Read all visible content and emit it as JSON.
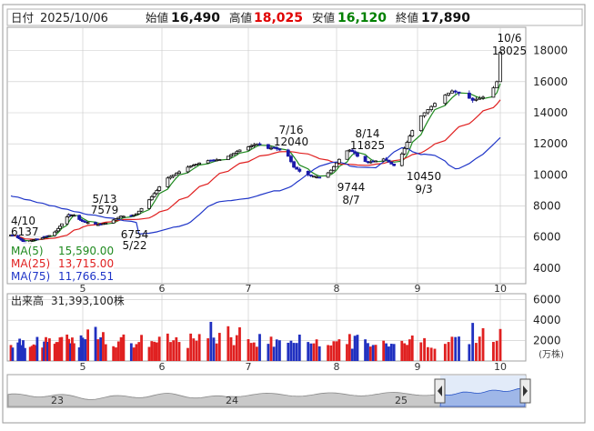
{
  "header": {
    "date_label": "日付",
    "date": "2025/10/06",
    "open_label": "始値",
    "open": "16,490",
    "high_label": "高値",
    "high": "18,025",
    "low_label": "安値",
    "low": "16,120",
    "close_label": "終値",
    "close": "17,890"
  },
  "colors": {
    "up": "#0a0a0a",
    "down": "#1a1aa8",
    "ma5": "#1f8a1f",
    "ma25": "#e02020",
    "ma75": "#1f35c8",
    "volume": "#e02020",
    "volume_down": "#2030c0",
    "grid": "#c8c8c8",
    "value_high": "#e00000",
    "value_low": "#008000"
  },
  "legend": [
    {
      "label": "MA(5)",
      "value": "15,590.00",
      "color": "#1f8a1f"
    },
    {
      "label": "MA(25)",
      "value": "13,715.00",
      "color": "#e02020"
    },
    {
      "label": "MA(75)",
      "value": "11,766.51",
      "color": "#1f35c8"
    }
  ],
  "volume": {
    "label": "出来高",
    "value": "31,393,100株",
    "unit": "(万株)"
  },
  "annotations": [
    {
      "date": "4/10",
      "value": "6137"
    },
    {
      "date": "5/13",
      "value": "7579"
    },
    {
      "date": "5/22",
      "value": "6754"
    },
    {
      "date": "7/16",
      "value": "12040"
    },
    {
      "date": "8/14",
      "value": "11825"
    },
    {
      "date": "8/7",
      "value": "9744"
    },
    {
      "date": "9/3",
      "value": "10450"
    },
    {
      "date": "10/6",
      "value": "18025"
    }
  ],
  "navigator": {
    "labels": [
      "23",
      "24",
      "25"
    ]
  },
  "chart_data": {
    "type": "candlestick",
    "price_axis": {
      "ticks": [
        4000,
        6000,
        8000,
        10000,
        12000,
        14000,
        16000,
        18000
      ],
      "ylim": [
        3000,
        19500
      ]
    },
    "volume_axis": {
      "ticks": [
        2000,
        4000,
        6000
      ],
      "ylim": [
        0,
        6600
      ]
    },
    "month_labels": [
      "5",
      "6",
      "7",
      "8",
      "9",
      "10"
    ],
    "last_candle": {
      "date": "2025/10/06",
      "open": 16490,
      "high": 18025,
      "low": 16120,
      "close": 17890
    },
    "ma_last": {
      "MA(5)": 15590.0,
      "MA(25)": 13715.0,
      "MA(75)": 11766.51
    }
  }
}
